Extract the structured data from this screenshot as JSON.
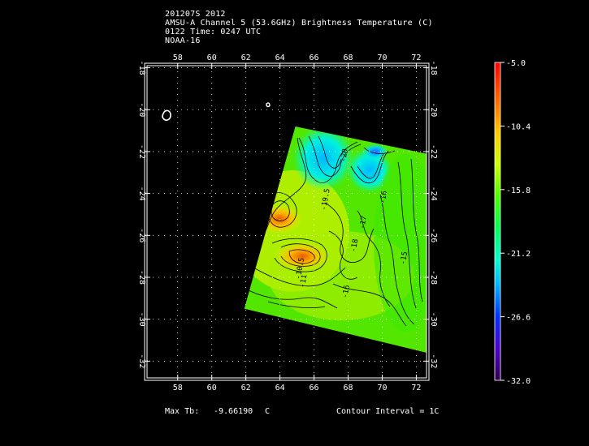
{
  "header": {
    "line1": "201207S 2012",
    "line2": "AMSU-A Channel 5 (53.6GHz) Brightness Temperature (C)",
    "line3": "0122 Time: 0247 UTC",
    "line4": "NOAA-16"
  },
  "footer": {
    "max_label": "Max Tb:",
    "max_value": "-9.66190",
    "max_unit": "C",
    "contour": "Contour Interval = 1C"
  },
  "chart_data": {
    "type": "heatmap",
    "title": "AMSU-A Channel 5 (53.6GHz) Brightness Temperature (C)",
    "x_ticks": [
      "58",
      "60",
      "62",
      "64",
      "66",
      "68",
      "70",
      "72"
    ],
    "y_ticks": [
      "-18",
      "-20",
      "-22",
      "-24",
      "-26",
      "-28",
      "-30",
      "-32"
    ],
    "xlim": [
      56.2,
      72.6
    ],
    "ylim": [
      -32.8,
      -17.9
    ],
    "grid": true,
    "colorbar": {
      "ticks": [
        "-5.0",
        "-10.4",
        "-15.8",
        "-21.2",
        "-26.6",
        "-32.0"
      ],
      "range": [
        -32.0,
        -5.0
      ]
    },
    "swath_corners_lonlat": [
      [
        64.9,
        -20.8
      ],
      [
        72.6,
        -22.1
      ],
      [
        72.6,
        -31.6
      ],
      [
        61.9,
        -29.5
      ]
    ],
    "contour_labels": [
      {
        "text": "-20",
        "lon": 67.9,
        "lat": -22.2
      },
      {
        "text": "-19.5",
        "lon": 66.8,
        "lat": -24.3
      },
      {
        "text": "-16",
        "lon": 70.2,
        "lat": -24.2
      },
      {
        "text": "-18",
        "lon": 68.5,
        "lat": -26.5
      },
      {
        "text": "-17",
        "lon": 69.0,
        "lat": -25.4
      },
      {
        "text": "-15",
        "lon": 71.4,
        "lat": -27.1
      },
      {
        "text": "-11",
        "lon": 65.5,
        "lat": -28.2
      },
      {
        "text": "-10.5",
        "lon": 65.3,
        "lat": -27.6
      },
      {
        "text": "-16",
        "lon": 68.0,
        "lat": -28.7
      }
    ],
    "coastline_features": [
      {
        "name": "island-west",
        "lon": 57.5,
        "lat": -20.3
      },
      {
        "name": "island-north",
        "lon": 63.4,
        "lat": -19.7
      }
    ]
  }
}
